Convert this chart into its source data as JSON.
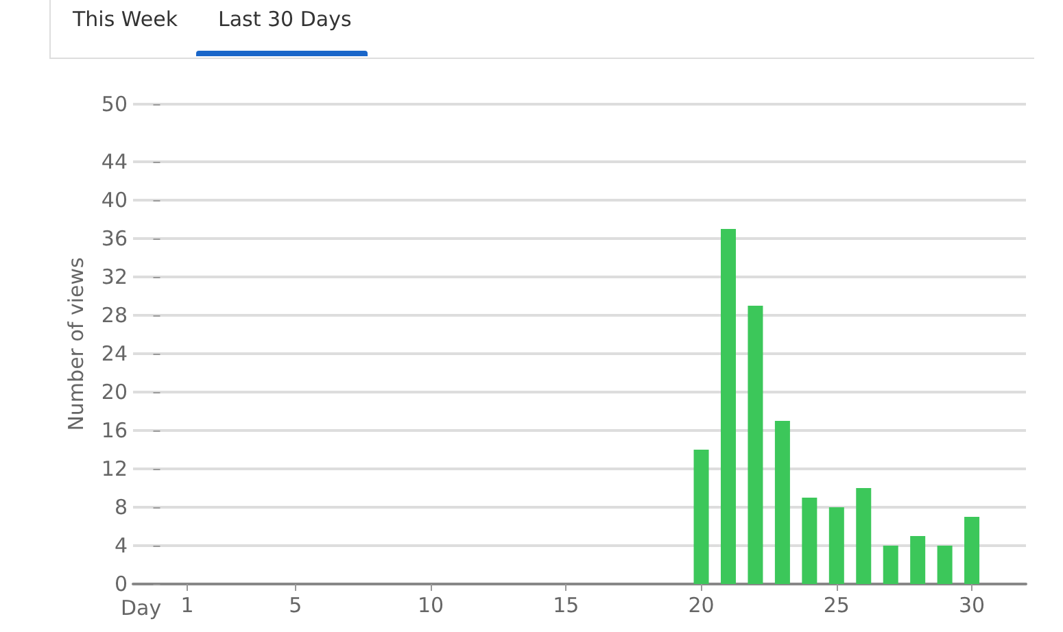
{
  "chart_data": {
    "type": "bar",
    "annotations": [
      "This Week",
      "Last 30 Days"
    ],
    "xlabel": "Day",
    "ylabel": "Number of views",
    "x": [
      20,
      21,
      22,
      23,
      24,
      25,
      26,
      27,
      28,
      29,
      30
    ],
    "series": [
      {
        "color": "#3cc75a",
        "values": [
          14,
          37,
          29,
          17,
          9,
          8,
          10,
          4,
          5,
          4,
          7
        ]
      }
    ],
    "xlim": [
      -1,
      32
    ],
    "xticks": [
      1,
      5,
      10,
      15,
      20,
      25,
      30
    ],
    "ylim": [
      0,
      50
    ],
    "yticks": [
      0,
      4,
      8,
      12,
      16,
      20,
      24,
      28,
      32,
      36,
      40,
      44,
      50
    ],
    "grid": "y"
  }
}
